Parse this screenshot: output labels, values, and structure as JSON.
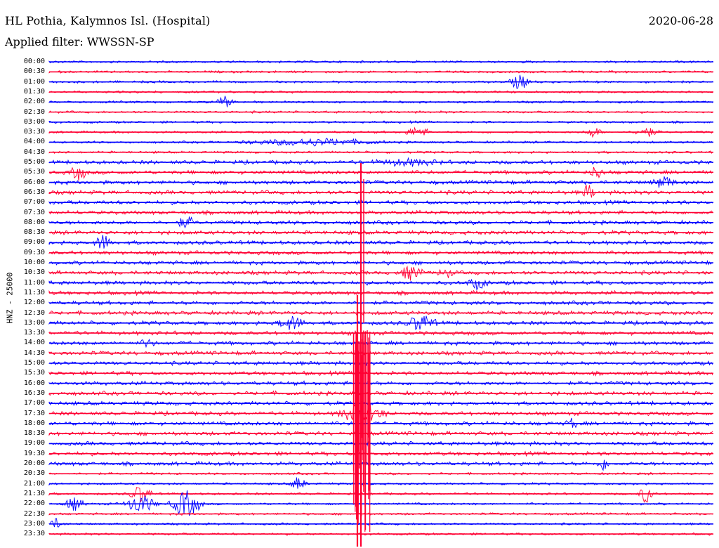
{
  "header": {
    "station": "HL Pothia, Kalymnos Isl. (Hospital)",
    "date": "2020-06-28",
    "filter": "Applied filter: WWSSN-SP"
  },
  "axis": {
    "channel_label": "HNZ - 25000"
  },
  "colors": {
    "even_trace": "#0000ff",
    "odd_trace": "#ff0033"
  },
  "rows": [
    "00:00",
    "00:30",
    "01:00",
    "01:30",
    "02:00",
    "02:30",
    "03:00",
    "03:30",
    "04:00",
    "04:30",
    "05:00",
    "05:30",
    "06:00",
    "06:30",
    "07:00",
    "07:30",
    "08:00",
    "08:30",
    "09:00",
    "09:30",
    "10:00",
    "10:30",
    "11:00",
    "11:30",
    "12:00",
    "12:30",
    "13:00",
    "13:30",
    "14:00",
    "14:30",
    "15:00",
    "15:30",
    "16:00",
    "16:30",
    "17:00",
    "17:30",
    "18:00",
    "18:30",
    "19:00",
    "19:30",
    "20:00",
    "20:30",
    "21:00",
    "21:30",
    "22:00",
    "22:30",
    "23:00",
    "23:30"
  ]
}
